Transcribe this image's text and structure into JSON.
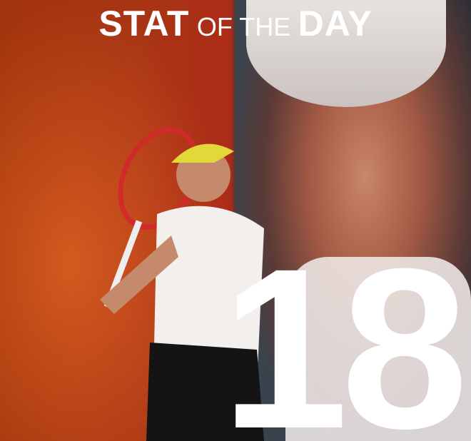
{
  "title": {
    "part1": "STAT",
    "part2": "OF THE",
    "part3": "DAY"
  },
  "stat_value": "18",
  "colors": {
    "left_bg": "#c2411a",
    "right_bg": "#2f353c",
    "text": "#ffffff"
  }
}
